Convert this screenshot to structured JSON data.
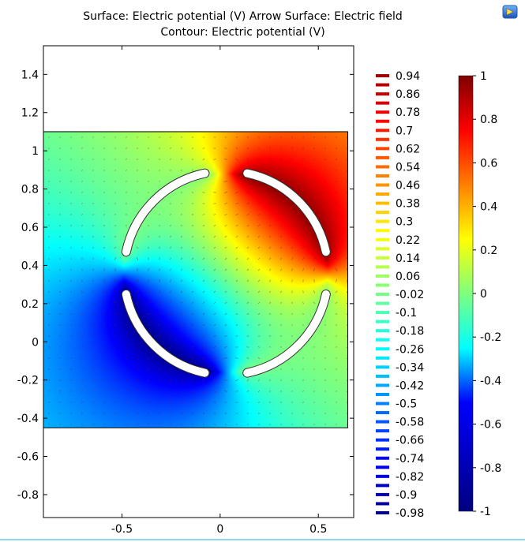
{
  "chart_data": {
    "type": "heatmap",
    "title_line1": "Surface: Electric potential (V)  Arrow Surface: Electric field",
    "title_line2": "Contour: Electric potential (V)",
    "xlabel": "",
    "ylabel": "",
    "xlim": [
      -0.9,
      0.68
    ],
    "ylim": [
      -0.92,
      1.55
    ],
    "x_ticks": [
      -0.5,
      0,
      0.5
    ],
    "x_tick_labels": [
      "-0.5",
      "0",
      "0.5"
    ],
    "y_ticks": [
      1.4,
      1.2,
      1,
      0.8,
      0.6,
      0.4,
      0.2,
      0,
      -0.2,
      -0.4,
      -0.6,
      -0.8
    ],
    "y_tick_labels": [
      "1.4",
      "1.2",
      "1",
      "0.8",
      "0.6",
      "0.4",
      "0.2",
      "0",
      "-0.2",
      "-0.4",
      "-0.6",
      "-0.8"
    ],
    "domain": {
      "x_range": [
        -0.9,
        0.65
      ],
      "y_range": [
        -0.45,
        1.1
      ]
    },
    "electrodes": {
      "center": [
        0.03,
        0.36
      ],
      "radius": 0.52,
      "gap_half_angle_deg": 12,
      "potentials": [
        {
          "quadrant": "upper-right",
          "value": 1
        },
        {
          "quadrant": "upper-left",
          "value": 0
        },
        {
          "quadrant": "lower-left",
          "value": -1
        },
        {
          "quadrant": "lower-right",
          "value": 0
        }
      ]
    },
    "contour_legend": {
      "values": [
        0.94,
        0.86,
        0.78,
        0.7,
        0.62,
        0.54,
        0.46,
        0.38,
        0.3,
        0.22,
        0.14,
        0.06,
        -0.02,
        -0.1,
        -0.18,
        -0.26,
        -0.34,
        -0.42,
        -0.5,
        -0.58,
        -0.66,
        -0.74,
        -0.82,
        -0.9,
        -0.98
      ],
      "labels": [
        "0.94",
        "0.86",
        "0.78",
        "0.7",
        "0.62",
        "0.54",
        "0.46",
        "0.38",
        "0.3",
        "0.22",
        "0.14",
        "0.06",
        "-0.02",
        "-0.1",
        "-0.18",
        "-0.26",
        "-0.34",
        "-0.42",
        "-0.5",
        "-0.58",
        "-0.66",
        "-0.74",
        "-0.82",
        "-0.9",
        "-0.98"
      ]
    },
    "surface_legend": {
      "range": [
        -1,
        1
      ],
      "ticks": [
        1,
        0.8,
        0.6,
        0.4,
        0.2,
        0,
        -0.2,
        -0.4,
        -0.6,
        -0.8,
        -1
      ],
      "labels": [
        "1",
        "0.8",
        "0.6",
        "0.4",
        "0.2",
        "0",
        "-0.2",
        "-0.4",
        "-0.6",
        "-0.8",
        "-1"
      ]
    },
    "colormap": [
      "#00007f",
      "#0000ff",
      "#00ffff",
      "#7fff7f",
      "#ffff00",
      "#ff7f00",
      "#ff0000",
      "#7f0000"
    ]
  },
  "toolbar": {
    "logo_icon": "comsol-logo-icon"
  }
}
